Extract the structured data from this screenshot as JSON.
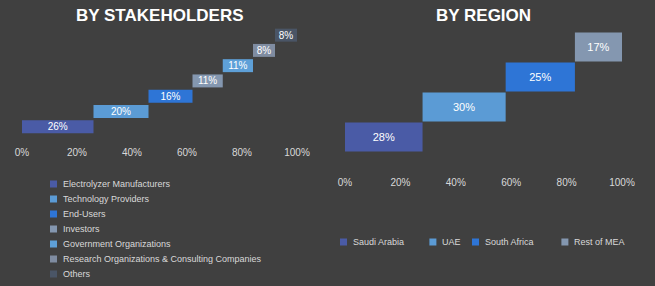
{
  "chart_data": [
    {
      "type": "waterfall",
      "title": "BY STAKEHOLDERS",
      "orientation": "horizontal",
      "series": [
        {
          "name": "Electrolyzer Manufacturers",
          "color": "#4a5ba6",
          "values": [
            26
          ],
          "value_labels": [
            "26%"
          ]
        },
        {
          "name": "Technology Providers",
          "color": "#5b9bd5",
          "values": [
            20
          ],
          "value_labels": [
            "20%"
          ]
        },
        {
          "name": "End-Users",
          "color": "#2e75d6",
          "values": [
            16
          ],
          "value_labels": [
            "16%"
          ]
        },
        {
          "name": "Investors",
          "color": "#8497b0",
          "values": [
            11
          ],
          "value_labels": [
            "11%"
          ]
        },
        {
          "name": "Government Organizations",
          "color": "#5ea0d8",
          "values": [
            11
          ],
          "value_labels": [
            "11%"
          ]
        },
        {
          "name": "Research Organizations & Consulting Companies",
          "color": "#7f8ca1",
          "values": [
            8
          ],
          "value_labels": [
            "8%"
          ]
        },
        {
          "name": "Others",
          "color": "#4a5566",
          "values": [
            8
          ],
          "value_labels": [
            "8%"
          ]
        }
      ],
      "xlim": [
        0,
        100
      ],
      "xticks": [
        {
          "value": 0,
          "label": "0%"
        },
        {
          "value": 20,
          "label": "20%"
        },
        {
          "value": 40,
          "label": "40%"
        },
        {
          "value": 60,
          "label": "60%"
        },
        {
          "value": 80,
          "label": "80%"
        },
        {
          "value": 100,
          "label": "100%"
        }
      ],
      "grid": false,
      "legend": "bottom",
      "data_labels": true,
      "tick_labels": "x"
    },
    {
      "type": "waterfall",
      "title": "BY REGION",
      "orientation": "horizontal",
      "series": [
        {
          "name": "Saudi Arabia",
          "color": "#4a5ba6",
          "values": [
            28
          ],
          "value_labels": [
            "28%"
          ]
        },
        {
          "name": "UAE",
          "color": "#5b9bd5",
          "values": [
            30
          ],
          "value_labels": [
            "30%"
          ]
        },
        {
          "name": "South Africa",
          "color": "#2e75d6",
          "values": [
            25
          ],
          "value_labels": [
            "25%"
          ]
        },
        {
          "name": "Rest of MEA",
          "color": "#8497b0",
          "values": [
            17
          ],
          "value_labels": [
            "17%"
          ]
        }
      ],
      "xlim": [
        0,
        100
      ],
      "xticks": [
        {
          "value": 0,
          "label": "0%"
        },
        {
          "value": 20,
          "label": "20%"
        },
        {
          "value": 40,
          "label": "40%"
        },
        {
          "value": 60,
          "label": "60%"
        },
        {
          "value": 80,
          "label": "80%"
        },
        {
          "value": 100,
          "label": "100%"
        }
      ],
      "grid": false,
      "legend": "bottom",
      "data_labels": true,
      "tick_labels": "x"
    }
  ]
}
